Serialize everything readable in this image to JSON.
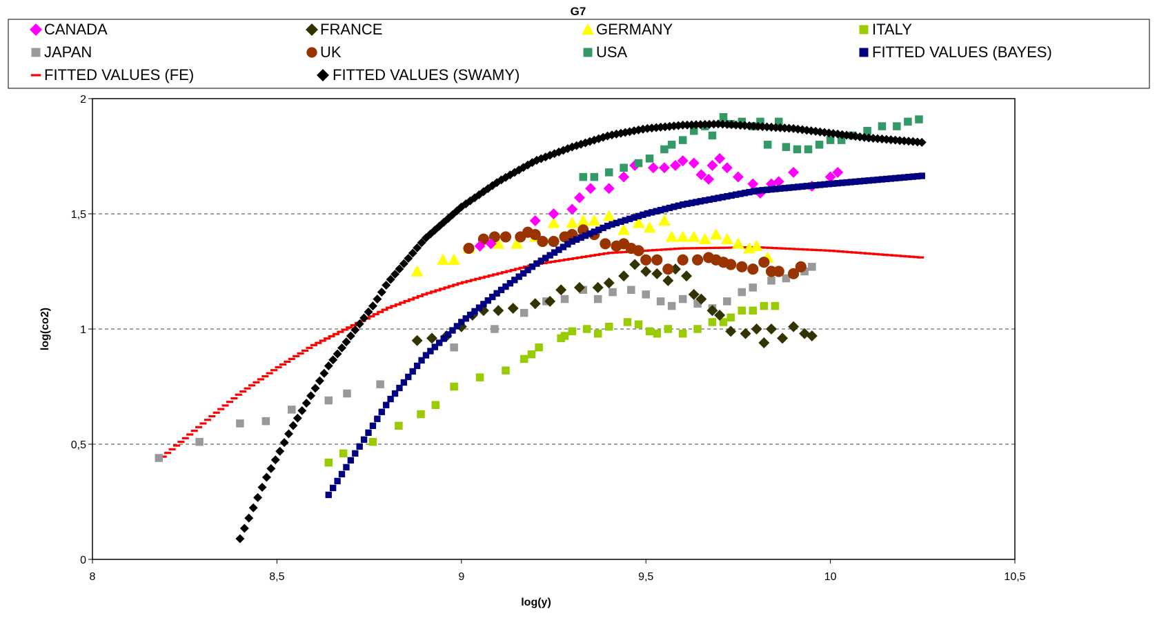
{
  "chart_data": {
    "type": "scatter",
    "title": "G7",
    "xlabel": "log(y)",
    "ylabel": "log(co2)",
    "xlim": [
      8,
      10.5
    ],
    "ylim": [
      0,
      2
    ],
    "x_ticks": [
      "8",
      "8,5",
      "9",
      "9,5",
      "10",
      "10,5"
    ],
    "y_ticks": [
      "0",
      "0,5",
      "1",
      "1,5",
      "2"
    ],
    "grid": "horizontal dashed",
    "legend_position": "top",
    "series": [
      {
        "name": "CANADA",
        "color": "#ff00ff",
        "marker": "diamond",
        "x": [
          9.05,
          9.08,
          9.2,
          9.25,
          9.3,
          9.32,
          9.35,
          9.4,
          9.44,
          9.47,
          9.52,
          9.55,
          9.58,
          9.6,
          9.63,
          9.65,
          9.67,
          9.68,
          9.7,
          9.72,
          9.75,
          9.79,
          9.81,
          9.84,
          9.86,
          9.9,
          9.95,
          10.0,
          10.02
        ],
        "y": [
          1.36,
          1.37,
          1.47,
          1.5,
          1.52,
          1.57,
          1.61,
          1.61,
          1.66,
          1.71,
          1.7,
          1.7,
          1.71,
          1.73,
          1.72,
          1.67,
          1.65,
          1.71,
          1.74,
          1.7,
          1.66,
          1.63,
          1.59,
          1.63,
          1.64,
          1.68,
          1.62,
          1.66,
          1.68
        ]
      },
      {
        "name": "FRANCE",
        "color": "#333300",
        "marker": "diamond",
        "x": [
          8.88,
          8.92,
          8.96,
          9.0,
          9.03,
          9.06,
          9.1,
          9.14,
          9.2,
          9.24,
          9.27,
          9.32,
          9.37,
          9.4,
          9.44,
          9.47,
          9.5,
          9.53,
          9.56,
          9.58,
          9.61,
          9.63,
          9.65,
          9.68,
          9.7,
          9.73,
          9.77,
          9.8,
          9.82,
          9.84,
          9.87,
          9.9,
          9.93,
          9.95
        ],
        "y": [
          0.95,
          0.96,
          0.97,
          1.01,
          1.06,
          1.08,
          1.08,
          1.09,
          1.11,
          1.12,
          1.17,
          1.18,
          1.18,
          1.2,
          1.23,
          1.28,
          1.25,
          1.24,
          1.21,
          1.26,
          1.23,
          1.15,
          1.13,
          1.08,
          1.06,
          0.99,
          0.98,
          1.0,
          0.94,
          1.0,
          0.96,
          1.01,
          0.98,
          0.97
        ]
      },
      {
        "name": "GERMANY",
        "color": "#ffff00",
        "marker": "triangle",
        "x": [
          8.88,
          8.95,
          8.98,
          9.02,
          9.06,
          9.1,
          9.15,
          9.2,
          9.25,
          9.3,
          9.33,
          9.36,
          9.4,
          9.44,
          9.48,
          9.51,
          9.55,
          9.57,
          9.6,
          9.63,
          9.66,
          9.69,
          9.72,
          9.75,
          9.78,
          9.8,
          9.83
        ],
        "y": [
          1.25,
          1.3,
          1.3,
          1.35,
          1.39,
          1.37,
          1.37,
          1.4,
          1.46,
          1.46,
          1.47,
          1.47,
          1.49,
          1.43,
          1.46,
          1.44,
          1.47,
          1.4,
          1.4,
          1.4,
          1.39,
          1.41,
          1.39,
          1.37,
          1.35,
          1.36,
          1.31
        ]
      },
      {
        "name": "ITALY",
        "color": "#99cc00",
        "marker": "square",
        "x": [
          8.64,
          8.68,
          8.76,
          8.83,
          8.89,
          8.93,
          8.98,
          9.05,
          9.12,
          9.17,
          9.19,
          9.21,
          9.27,
          9.28,
          9.3,
          9.34,
          9.37,
          9.4,
          9.45,
          9.48,
          9.51,
          9.53,
          9.56,
          9.6,
          9.64,
          9.68,
          9.71,
          9.73,
          9.76,
          9.79,
          9.82,
          9.85
        ],
        "y": [
          0.42,
          0.46,
          0.51,
          0.58,
          0.63,
          0.67,
          0.75,
          0.79,
          0.82,
          0.87,
          0.89,
          0.92,
          0.96,
          0.97,
          0.99,
          1.0,
          0.98,
          1.01,
          1.03,
          1.02,
          0.99,
          0.98,
          1.0,
          0.98,
          1.0,
          1.03,
          1.03,
          1.05,
          1.08,
          1.08,
          1.1,
          1.1
        ]
      },
      {
        "name": "JAPAN",
        "color": "#999999",
        "marker": "square",
        "x": [
          8.18,
          8.29,
          8.4,
          8.47,
          8.54,
          8.64,
          8.69,
          8.78,
          8.98,
          9.09,
          9.17,
          9.23,
          9.28,
          9.33,
          9.37,
          9.41,
          9.46,
          9.5,
          9.54,
          9.57,
          9.6,
          9.64,
          9.68,
          9.72,
          9.76,
          9.79,
          9.84,
          9.88,
          9.93,
          9.95
        ],
        "y": [
          0.44,
          0.51,
          0.59,
          0.6,
          0.65,
          0.69,
          0.72,
          0.76,
          0.92,
          1.0,
          1.07,
          1.12,
          1.13,
          1.17,
          1.13,
          1.16,
          1.17,
          1.15,
          1.12,
          1.1,
          1.13,
          1.11,
          1.09,
          1.12,
          1.16,
          1.18,
          1.21,
          1.22,
          1.25,
          1.27
        ]
      },
      {
        "name": "UK",
        "color": "#993300",
        "marker": "circle",
        "x": [
          9.02,
          9.06,
          9.09,
          9.12,
          9.16,
          9.18,
          9.2,
          9.22,
          9.25,
          9.28,
          9.3,
          9.33,
          9.36,
          9.39,
          9.42,
          9.44,
          9.46,
          9.48,
          9.5,
          9.53,
          9.56,
          9.6,
          9.64,
          9.67,
          9.69,
          9.71,
          9.73,
          9.76,
          9.79,
          9.82,
          9.84,
          9.86,
          9.9,
          9.92
        ],
        "y": [
          1.35,
          1.39,
          1.4,
          1.4,
          1.4,
          1.42,
          1.41,
          1.38,
          1.38,
          1.4,
          1.41,
          1.43,
          1.41,
          1.37,
          1.36,
          1.37,
          1.35,
          1.34,
          1.3,
          1.3,
          1.26,
          1.3,
          1.3,
          1.31,
          1.3,
          1.29,
          1.28,
          1.27,
          1.26,
          1.29,
          1.25,
          1.25,
          1.24,
          1.27
        ]
      },
      {
        "name": "USA",
        "color": "#339966",
        "marker": "square",
        "x": [
          9.33,
          9.36,
          9.4,
          9.44,
          9.48,
          9.51,
          9.55,
          9.57,
          9.6,
          9.63,
          9.66,
          9.68,
          9.71,
          9.73,
          9.76,
          9.79,
          9.81,
          9.83,
          9.86,
          9.88,
          9.91,
          9.94,
          9.97,
          10.0,
          10.03,
          10.06,
          10.1,
          10.14,
          10.18,
          10.21,
          10.24
        ],
        "y": [
          1.66,
          1.66,
          1.68,
          1.7,
          1.72,
          1.74,
          1.78,
          1.8,
          1.82,
          1.86,
          1.88,
          1.84,
          1.92,
          1.89,
          1.9,
          1.88,
          1.9,
          1.8,
          1.9,
          1.79,
          1.78,
          1.78,
          1.8,
          1.82,
          1.82,
          1.84,
          1.86,
          1.88,
          1.88,
          1.9,
          1.91
        ]
      },
      {
        "name": "FITTED VALUES (BAYES)",
        "color": "#000080",
        "marker": "square",
        "curve": "bayes",
        "x_start": 8.64,
        "x_end": 10.25,
        "x_step": 0.012
      },
      {
        "name": "FITTED VALUES (FE)",
        "color": "#ff0000",
        "marker": "dash",
        "curve": "fe",
        "x_start": 8.18,
        "x_end": 10.25,
        "x_step": 0.012
      },
      {
        "name": "FITTED VALUES (SWAMY)",
        "color": "#000000",
        "marker": "diamond",
        "curve": "swamy",
        "x_start": 8.4,
        "x_end": 10.25,
        "x_step": 0.012
      }
    ]
  }
}
